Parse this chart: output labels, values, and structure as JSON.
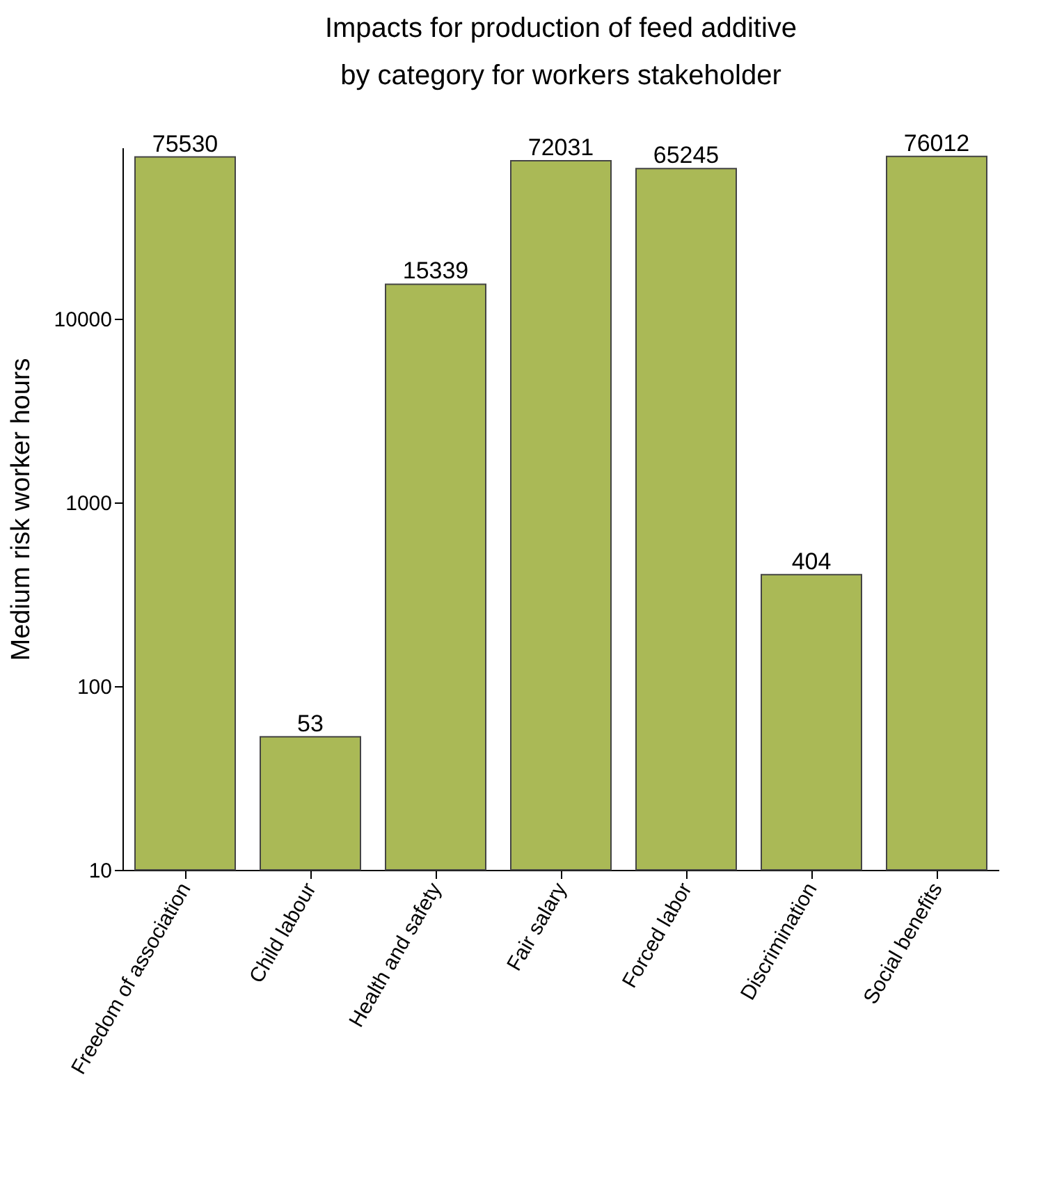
{
  "chart_data": {
    "type": "bar",
    "title": [
      "Impacts for production of feed additive",
      "by category for workers stakeholder"
    ],
    "ylabel": "Medium risk worker hours",
    "categories": [
      "Freedom of association",
      "Child labour",
      "Health and safety",
      "Fair salary",
      "Forced labor",
      "Discrimination",
      "Social benefits"
    ],
    "values": [
      75530,
      53,
      15339,
      72031,
      65245,
      404,
      76012
    ],
    "color": "#aab956",
    "log": "y",
    "ylim": [
      10,
      85000
    ],
    "yticks": [
      10,
      100,
      1000,
      10000
    ],
    "data_labels": true,
    "grid": false
  }
}
